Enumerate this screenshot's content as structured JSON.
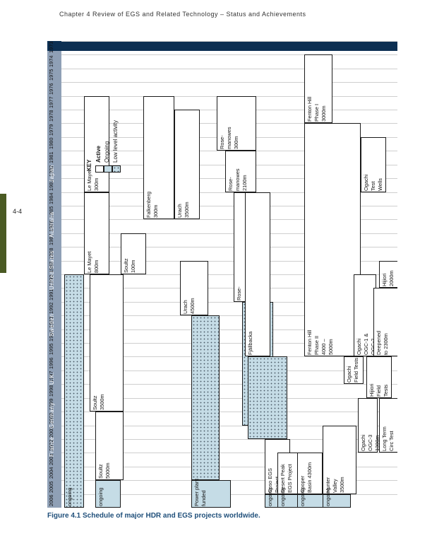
{
  "header": "Chapter 4  Review of EGS and Related Technology – Status and Achievements",
  "page_number": "4-4",
  "caption": "Figure 4.1 Schedule of major HDR and EGS projects worldwide.",
  "chart_data": {
    "type": "gantt",
    "title": "Schedule of major HDR and EGS projects worldwide",
    "years": [
      "1973",
      "1974",
      "1975",
      "1976",
      "1977",
      "1978",
      "1979",
      "1980",
      "1981",
      "1982",
      "1983",
      "1984",
      "1985",
      "1986",
      "1987",
      "1988",
      "1989",
      "1990",
      "1991",
      "1992",
      "1993",
      "1994",
      "1995",
      "1996",
      "1997",
      "1998",
      "1999",
      "2000",
      "2001",
      "2002",
      "2003",
      "2004",
      "2005",
      "2006"
    ],
    "countries": [
      "France",
      "Germany",
      "U.K.",
      "Sweden",
      "United States",
      "Australia",
      "Japan"
    ],
    "key": {
      "title": "KEY",
      "items": [
        {
          "label": "Active",
          "status": "active"
        },
        {
          "label": "Ongoing",
          "status": "ongoing"
        },
        {
          "label": "Low level activity",
          "status": "low"
        }
      ]
    },
    "projects": [
      {
        "country": "France",
        "start": 1977,
        "end": 1983,
        "status": "active",
        "lines": [
          "Le Mayet",
          "300m"
        ]
      },
      {
        "country": "France",
        "start": 1984,
        "end": 1989,
        "status": "active",
        "lines": [
          "Le Mayet",
          "800m"
        ]
      },
      {
        "country": "France",
        "start": 1990,
        "end": 2006,
        "status": "low",
        "lines": [
          "ongoing"
        ]
      },
      {
        "country": "France",
        "start": 1987,
        "end": 1989,
        "status": "active",
        "lines": [
          "Soultz",
          "100m"
        ]
      },
      {
        "country": "France",
        "start": 1990,
        "end": 1999,
        "status": "active",
        "lines": [
          "Soultz",
          "3500m"
        ]
      },
      {
        "country": "France",
        "start": 2000,
        "end": 2004,
        "status": "active",
        "lines": [
          "Soultz",
          "5000m"
        ]
      },
      {
        "country": "France",
        "start": 2005,
        "end": 2006,
        "status": "ongoing",
        "lines": [
          "ongoing"
        ]
      },
      {
        "country": "Germany",
        "start": 1977,
        "end": 1985,
        "status": "active",
        "lines": [
          "Falkenberg",
          "300m"
        ]
      },
      {
        "country": "Germany",
        "start": 1978,
        "end": 1985,
        "status": "active",
        "lines": [
          "Urach",
          "3500m"
        ]
      },
      {
        "country": "Germany",
        "start": 1989,
        "end": 1992,
        "status": "active",
        "lines": [
          "Urach",
          "4500m"
        ]
      },
      {
        "country": "Germany",
        "start": 1993,
        "end": 2004,
        "status": "low",
        "lines": []
      },
      {
        "country": "Germany",
        "start": 2005,
        "end": 2006,
        "status": "ongoing",
        "lines": [
          "Power plant",
          "funded"
        ]
      },
      {
        "country": "U.K.",
        "start": 1977,
        "end": 1980,
        "status": "active",
        "lines": [
          "Rose-",
          "manowes",
          "300m"
        ]
      },
      {
        "country": "U.K.",
        "start": 1981,
        "end": 1983,
        "status": "active",
        "lines": [
          "Rose-",
          "manowes",
          "2100m"
        ]
      },
      {
        "country": "U.K.",
        "start": 1984,
        "end": 1991,
        "status": "active",
        "lines": [
          "Rose-",
          "manowes",
          "2700m"
        ]
      },
      {
        "country": "U.K.",
        "start": 1992,
        "end": 2000,
        "status": "low",
        "lines": []
      },
      {
        "country": "Sweden",
        "start": 1984,
        "end": 1995,
        "status": "active",
        "lines": [
          "Fjällbacka"
        ]
      },
      {
        "country": "Sweden",
        "start": 1996,
        "end": 2001,
        "status": "low",
        "lines": []
      },
      {
        "country": "United States",
        "start": 1974,
        "end": 1978,
        "status": "active",
        "lines": [
          "Fenton Hill",
          "Phase I",
          "3000m"
        ]
      },
      {
        "country": "United States",
        "start": 1979,
        "end": 1995,
        "status": "active",
        "lines": [
          "Fenton Hill",
          "Phase II",
          "4000 –",
          "5000m"
        ]
      },
      {
        "country": "United States",
        "start": 2002,
        "end": 2005,
        "status": "active",
        "lines": [
          "Coso EGS",
          "Project"
        ]
      },
      {
        "country": "United States",
        "start": 2006,
        "end": 2006,
        "status": "ongoing",
        "lines": [
          "ongoing"
        ]
      },
      {
        "country": "Australia",
        "start": 2003,
        "end": 2005,
        "status": "active",
        "lines": [
          "Desert Peak",
          "EGS Project"
        ]
      },
      {
        "country": "Australia",
        "start": 2006,
        "end": 2006,
        "status": "ongoing",
        "lines": [
          "ongoing"
        ]
      },
      {
        "country": "Australia",
        "start": 2003,
        "end": 2005,
        "status": "active",
        "lines": [
          "Cooper",
          "Basin 4300m"
        ]
      },
      {
        "country": "Australia",
        "start": 2006,
        "end": 2006,
        "status": "ongoing",
        "lines": [
          "ongoing"
        ]
      },
      {
        "country": "Australia",
        "start": 2001,
        "end": 2005,
        "status": "active",
        "lines": [
          "Hunter",
          "Valley",
          "3500m"
        ]
      },
      {
        "country": "Australia",
        "start": 2006,
        "end": 2006,
        "status": "ongoing",
        "lines": [
          "ongoing"
        ]
      },
      {
        "country": "Japan",
        "start": 1980,
        "end": 1983,
        "status": "active",
        "lines": [
          "Ogachi",
          "Test",
          "Wells"
        ]
      },
      {
        "country": "Japan",
        "start": 1990,
        "end": 1995,
        "status": "active",
        "lines": [
          "Ogachi",
          "OGC-1 &",
          "OGC-2",
          "1000m"
        ]
      },
      {
        "country": "Japan",
        "start": 1996,
        "end": 1997,
        "status": "active",
        "lines": [
          "Ogachi",
          "Field Tests"
        ]
      },
      {
        "country": "Japan",
        "start": 1999,
        "end": 2002,
        "status": "active",
        "lines": [
          "Ogachi",
          "OGC-3",
          "1300m"
        ]
      },
      {
        "country": "Japan",
        "start": 1989,
        "end": 1990,
        "status": "active",
        "lines": [
          "Hijiori",
          "2000m"
        ]
      },
      {
        "country": "Japan",
        "start": 1991,
        "end": 1995,
        "status": "active",
        "lines": [
          "Deepened",
          "to 2300m"
        ]
      },
      {
        "country": "Japan",
        "start": 1996,
        "end": 1998,
        "status": "active",
        "lines": [
          "Hijiori",
          "Field",
          "Tests"
        ]
      },
      {
        "country": "Japan",
        "start": 1999,
        "end": 2002,
        "status": "active",
        "lines": [
          "Long Term",
          "Circ Test"
        ]
      }
    ]
  }
}
